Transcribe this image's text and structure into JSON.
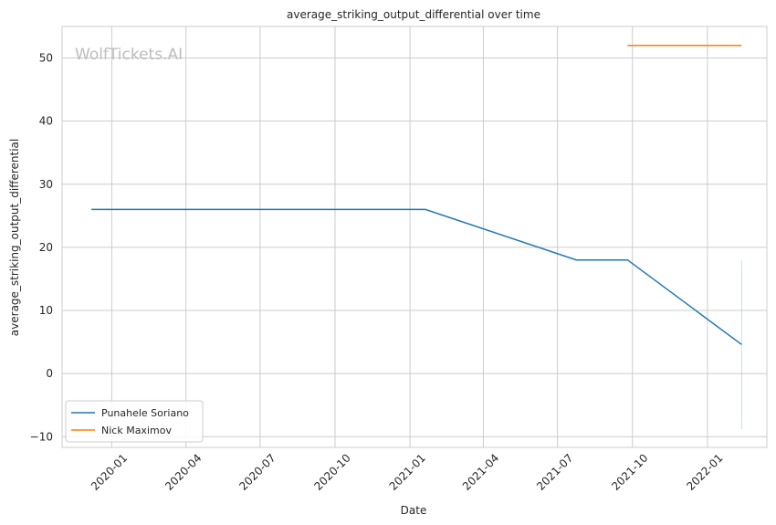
{
  "chart_data": {
    "type": "line",
    "title": "average_striking_output_differential over time",
    "xlabel": "Date",
    "ylabel": "average_striking_output_differential",
    "watermark": "WolfTickets.AI",
    "x_type": "date",
    "xlim": [
      "2019-11-01",
      "2022-03-15"
    ],
    "ylim": [
      -11.7,
      55
    ],
    "x_ticks": [
      "2020-01-01",
      "2020-04-01",
      "2020-07-01",
      "2020-10-01",
      "2021-01-01",
      "2021-04-01",
      "2021-07-01",
      "2021-10-01",
      "2022-01-01"
    ],
    "x_tick_labels": [
      "2020-01",
      "2020-04",
      "2020-07",
      "2020-10",
      "2021-01",
      "2021-04",
      "2021-07",
      "2021-10",
      "2022-01"
    ],
    "y_ticks": [
      -10,
      0,
      10,
      20,
      30,
      40,
      50
    ],
    "grid": true,
    "legend_position": "lower-left",
    "series": [
      {
        "name": "Punahele Soriano",
        "color": "#1f77b4",
        "x": [
          "2019-12-07",
          "2021-01-20",
          "2021-07-24",
          "2021-09-25",
          "2022-02-12"
        ],
        "y": [
          26,
          26,
          18,
          18,
          4.6
        ],
        "band": {
          "x": "2022-02-12",
          "low": -8.8,
          "high": 18
        }
      },
      {
        "name": "Nick Maximov",
        "color": "#ff7f0e",
        "x": [
          "2021-09-25",
          "2022-02-12"
        ],
        "y": [
          52,
          52
        ]
      }
    ]
  }
}
